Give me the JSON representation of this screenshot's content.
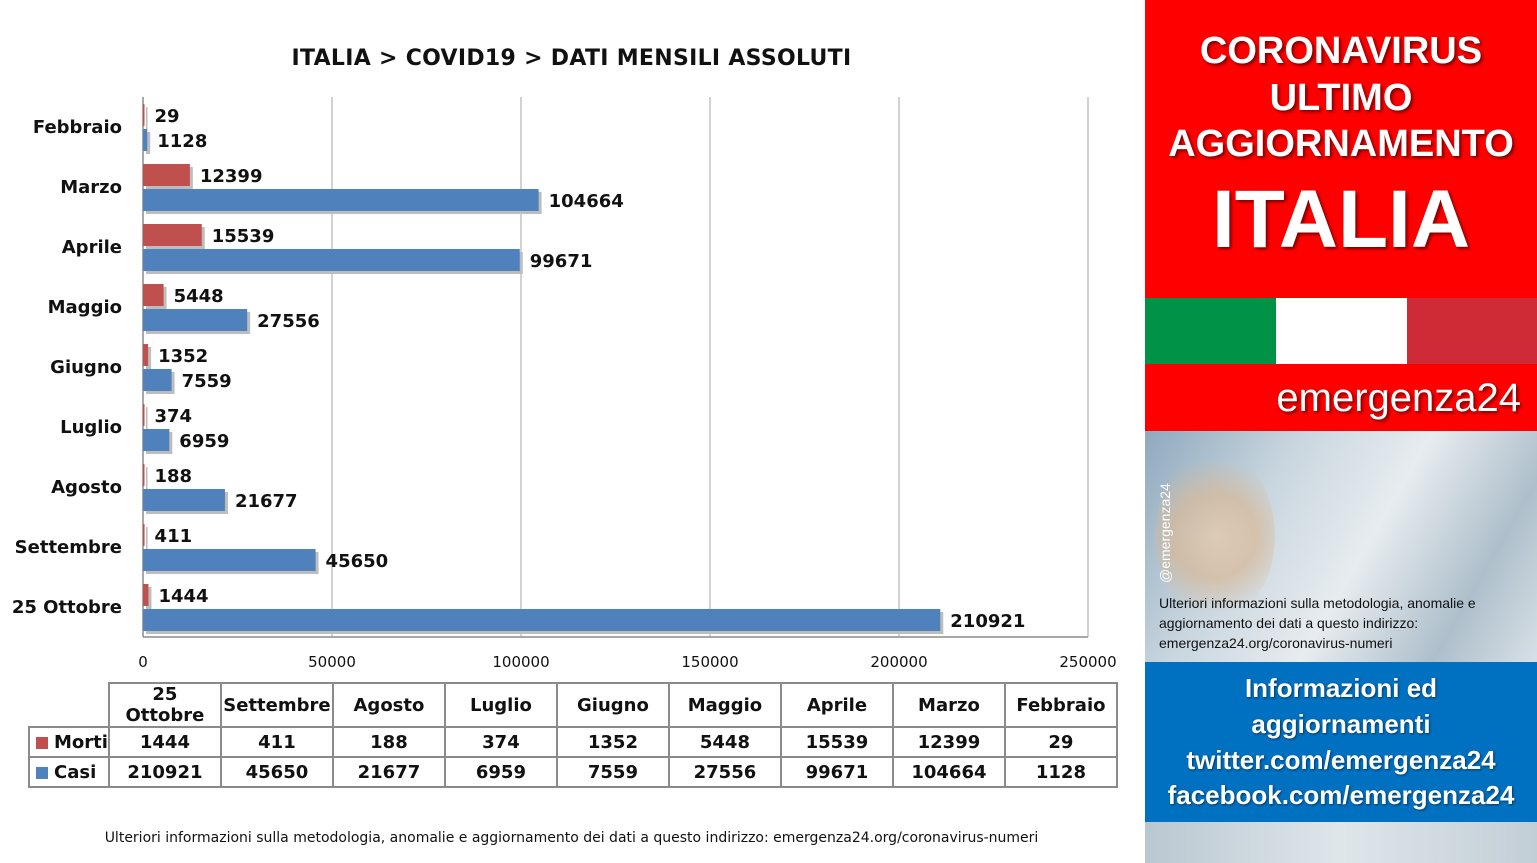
{
  "chart_data": {
    "type": "bar",
    "orientation": "horizontal",
    "title": "ITALIA >  COVID19 > DATI MENSILI  ASSOLUTI",
    "categories": [
      "Febbraio",
      "Marzo",
      "Aprile",
      "Maggio",
      "Giugno",
      "Luglio",
      "Agosto",
      "Settembre",
      "25 Ottobre"
    ],
    "series": [
      {
        "name": "Morti",
        "color": "#c0504d",
        "values": [
          29,
          12399,
          15539,
          5448,
          1352,
          374,
          188,
          411,
          1444
        ]
      },
      {
        "name": "Casi",
        "color": "#4f81bd",
        "values": [
          1128,
          104664,
          99671,
          27556,
          7559,
          6959,
          21677,
          45650,
          210921
        ]
      }
    ],
    "xlim": [
      0,
      250000
    ],
    "x_ticks": [
      "0",
      "50000",
      "100000",
      "150000",
      "200000",
      "250000"
    ],
    "grid": "vertical",
    "data_labels": true
  },
  "table": {
    "headers": [
      "25 Ottobre",
      "Settembre",
      "Agosto",
      "Luglio",
      "Giugno",
      "Maggio",
      "Aprile",
      "Marzo",
      "Febbraio"
    ],
    "rows": [
      {
        "label": "Morti",
        "color": "#c0504d",
        "cells": [
          "1444",
          "411",
          "188",
          "374",
          "1352",
          "5448",
          "15539",
          "12399",
          "29"
        ]
      },
      {
        "label": "Casi",
        "color": "#4f81bd",
        "cells": [
          "210921",
          "45650",
          "21677",
          "6959",
          "7559",
          "27556",
          "99671",
          "104664",
          "1128"
        ]
      }
    ]
  },
  "footnote": "Ulteriori informazioni sulla metodologia, anomalie e aggiornamento dei dati a questo indirizzo: emergenza24.org/coronavirus-numeri",
  "sidebar": {
    "headline_1": "CORONAVIRUS",
    "headline_2": "ULTIMO",
    "headline_3": "AGGIORNAMENTO",
    "headline_4": "ITALIA",
    "brand": "emergenza24",
    "handle": "@emergenza24",
    "info_text": "Ulteriori informazioni sulla metodologia, anomalie e aggiornamento dei dati a questo indirizzo: emergenza24.org/coronavirus-numeri",
    "blue_1": "Informazioni ed",
    "blue_2": "aggiornamenti",
    "blue_3": "twitter.com/emergenza24",
    "blue_4": "facebook.com/emergenza24",
    "flag_colors": [
      "#009246",
      "#ffffff",
      "#ce2b37"
    ],
    "red_color": "#ff0000",
    "blue_color": "#0070c0"
  }
}
